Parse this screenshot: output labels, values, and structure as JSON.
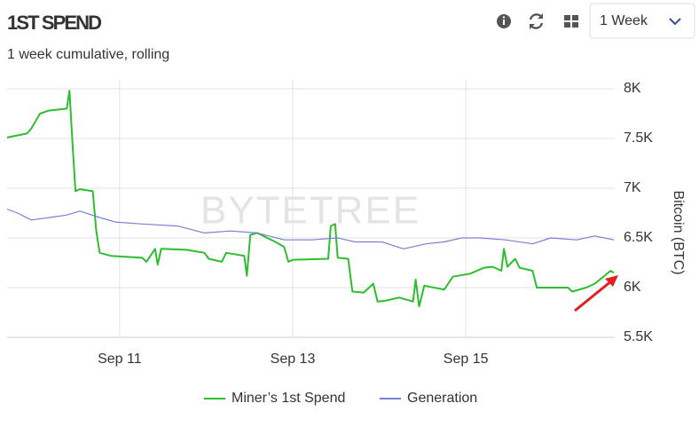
{
  "chart_data": {
    "type": "line",
    "title": "1ST SPEND",
    "subtitle": "1 week cumulative, rolling",
    "range_selector": "1 Week",
    "watermark": "BYTETREE",
    "y_label": "Bitcoin (BTC)",
    "xlim": [
      9.7,
      16.72
    ],
    "xticks": [
      {
        "value": 11,
        "label": "Sep 11"
      },
      {
        "value": 13,
        "label": "Sep 13"
      },
      {
        "value": 15,
        "label": "Sep 15"
      }
    ],
    "ylim": [
      5500,
      8000
    ],
    "yticks": [
      {
        "value": 5500,
        "label": "5.5K"
      },
      {
        "value": 6000,
        "label": "6K"
      },
      {
        "value": 6500,
        "label": "6.5K"
      },
      {
        "value": 7000,
        "label": "7K"
      },
      {
        "value": 7500,
        "label": "7.5K"
      },
      {
        "value": 8000,
        "label": "8K"
      }
    ],
    "grid": true,
    "legend": "bottom",
    "series": [
      {
        "name": "Miner’s 1st Spend",
        "color": "#2ebd2e",
        "x": [
          9.7,
          9.93,
          9.98,
          10.08,
          10.18,
          10.39,
          10.42,
          10.46,
          10.49,
          10.54,
          10.69,
          10.73,
          10.77,
          10.9,
          11.26,
          11.31,
          11.41,
          11.44,
          11.48,
          11.77,
          11.98,
          12.03,
          12.18,
          12.23,
          12.44,
          12.47,
          12.51,
          12.59,
          12.8,
          12.9,
          12.95,
          13.0,
          13.41,
          13.44,
          13.49,
          13.52,
          13.64,
          13.69,
          13.82,
          13.93,
          13.98,
          14.08,
          14.23,
          14.39,
          14.42,
          14.46,
          14.52,
          14.75,
          14.85,
          15.05,
          15.21,
          15.31,
          15.41,
          15.44,
          15.48,
          15.57,
          15.62,
          15.77,
          15.82,
          15.98,
          16.18,
          16.23,
          16.39,
          16.49,
          16.59,
          16.67,
          16.71
        ],
        "values": [
          7510,
          7550,
          7600,
          7750,
          7780,
          7800,
          7980,
          7380,
          6970,
          6990,
          6970,
          6570,
          6350,
          6320,
          6300,
          6260,
          6390,
          6230,
          6390,
          6380,
          6350,
          6290,
          6260,
          6350,
          6320,
          6120,
          6530,
          6550,
          6460,
          6410,
          6260,
          6280,
          6290,
          6620,
          6640,
          6300,
          6290,
          5960,
          5950,
          6040,
          5860,
          5870,
          5900,
          5860,
          6080,
          5810,
          6020,
          5980,
          6110,
          6140,
          6200,
          6210,
          6170,
          6390,
          6210,
          6290,
          6200,
          6170,
          6000,
          6000,
          6000,
          5960,
          6000,
          6040,
          6110,
          6170,
          6150
        ]
      },
      {
        "name": "Generation",
        "color": "#7b7fd1",
        "x": [
          9.7,
          9.82,
          9.98,
          10.23,
          10.39,
          10.54,
          10.75,
          10.95,
          11.26,
          11.67,
          11.98,
          12.28,
          12.59,
          12.9,
          13.21,
          13.52,
          13.72,
          14.03,
          14.28,
          14.54,
          14.75,
          14.95,
          15.16,
          15.46,
          15.77,
          15.98,
          16.28,
          16.49,
          16.71
        ],
        "values": [
          6790,
          6750,
          6680,
          6710,
          6730,
          6770,
          6710,
          6660,
          6640,
          6620,
          6550,
          6570,
          6550,
          6480,
          6480,
          6500,
          6460,
          6460,
          6390,
          6440,
          6460,
          6500,
          6500,
          6480,
          6440,
          6500,
          6480,
          6520,
          6480
        ]
      }
    ]
  }
}
